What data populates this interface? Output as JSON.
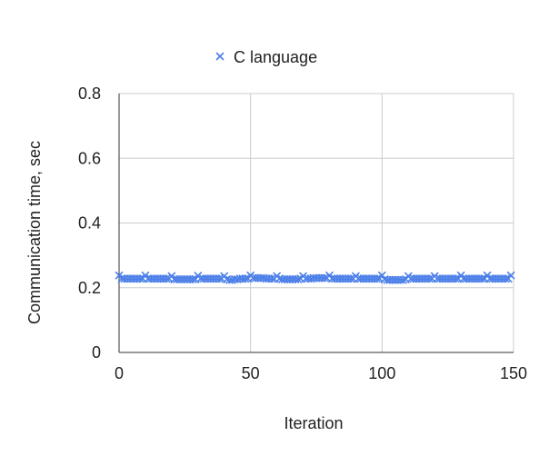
{
  "chart_data": {
    "type": "scatter",
    "title": "",
    "xlabel": "Iteration",
    "ylabel": "Communication time, sec",
    "xlim": [
      0,
      150
    ],
    "ylim": [
      0,
      0.8
    ],
    "xticks": [
      0,
      50,
      100,
      150
    ],
    "yticks": [
      0,
      0.2,
      0.4,
      0.6,
      0.8
    ],
    "xtick_labels": [
      "0",
      "50",
      "100",
      "150"
    ],
    "ytick_labels": [
      "0",
      "0.2",
      "0.4",
      "0.6",
      "0.8"
    ],
    "grid": true,
    "legend_position": "top-center",
    "marker": "x",
    "series": [
      {
        "name": "C language",
        "color": "#4a7ee8",
        "x": [
          0,
          1,
          2,
          3,
          4,
          5,
          6,
          7,
          8,
          9,
          10,
          11,
          12,
          13,
          14,
          15,
          16,
          17,
          18,
          19,
          20,
          21,
          22,
          23,
          24,
          25,
          26,
          27,
          28,
          29,
          30,
          31,
          32,
          33,
          34,
          35,
          36,
          37,
          38,
          39,
          40,
          41,
          42,
          43,
          44,
          45,
          46,
          47,
          48,
          49,
          50,
          51,
          52,
          53,
          54,
          55,
          56,
          57,
          58,
          59,
          60,
          61,
          62,
          63,
          64,
          65,
          66,
          67,
          68,
          69,
          70,
          71,
          72,
          73,
          74,
          75,
          76,
          77,
          78,
          79,
          80,
          81,
          82,
          83,
          84,
          85,
          86,
          87,
          88,
          89,
          90,
          91,
          92,
          93,
          94,
          95,
          96,
          97,
          98,
          99,
          100,
          101,
          102,
          103,
          104,
          105,
          106,
          107,
          108,
          109,
          110,
          111,
          112,
          113,
          114,
          115,
          116,
          117,
          118,
          119,
          120,
          121,
          122,
          123,
          124,
          125,
          126,
          127,
          128,
          129,
          130,
          131,
          132,
          133,
          134,
          135,
          136,
          137,
          138,
          139,
          140,
          141,
          142,
          143,
          144,
          145,
          146,
          147,
          148,
          149
        ],
        "values": [
          0.238,
          0.228,
          0.228,
          0.228,
          0.228,
          0.228,
          0.228,
          0.228,
          0.228,
          0.228,
          0.238,
          0.228,
          0.228,
          0.228,
          0.228,
          0.228,
          0.228,
          0.228,
          0.228,
          0.228,
          0.236,
          0.226,
          0.226,
          0.226,
          0.226,
          0.226,
          0.226,
          0.226,
          0.226,
          0.226,
          0.237,
          0.228,
          0.228,
          0.228,
          0.228,
          0.228,
          0.228,
          0.228,
          0.228,
          0.228,
          0.236,
          0.226,
          0.224,
          0.224,
          0.226,
          0.226,
          0.228,
          0.228,
          0.228,
          0.228,
          0.238,
          0.23,
          0.23,
          0.23,
          0.23,
          0.23,
          0.228,
          0.228,
          0.228,
          0.228,
          0.236,
          0.228,
          0.226,
          0.226,
          0.226,
          0.226,
          0.226,
          0.226,
          0.226,
          0.228,
          0.236,
          0.228,
          0.228,
          0.228,
          0.23,
          0.23,
          0.23,
          0.23,
          0.23,
          0.23,
          0.238,
          0.228,
          0.228,
          0.228,
          0.228,
          0.228,
          0.228,
          0.228,
          0.228,
          0.228,
          0.236,
          0.228,
          0.228,
          0.228,
          0.228,
          0.228,
          0.228,
          0.228,
          0.228,
          0.228,
          0.238,
          0.226,
          0.224,
          0.224,
          0.224,
          0.224,
          0.224,
          0.224,
          0.224,
          0.226,
          0.236,
          0.228,
          0.228,
          0.228,
          0.228,
          0.228,
          0.228,
          0.228,
          0.228,
          0.228,
          0.236,
          0.228,
          0.228,
          0.228,
          0.228,
          0.228,
          0.228,
          0.228,
          0.228,
          0.228,
          0.238,
          0.228,
          0.228,
          0.228,
          0.228,
          0.228,
          0.228,
          0.228,
          0.228,
          0.228,
          0.238,
          0.228,
          0.228,
          0.228,
          0.228,
          0.228,
          0.228,
          0.228,
          0.228,
          0.238
        ]
      }
    ]
  }
}
